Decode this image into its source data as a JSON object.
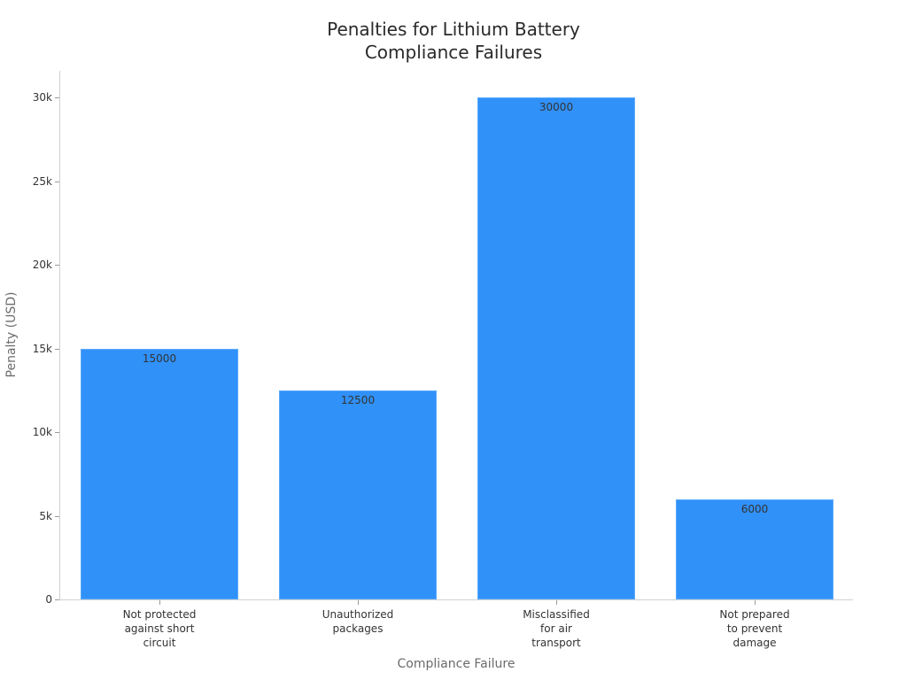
{
  "chart_data": {
    "type": "bar",
    "title": "Penalties for Lithium Battery\nCompliance Failures",
    "title_lines": [
      "Penalties for Lithium Battery",
      "Compliance Failures"
    ],
    "xlabel": "Compliance Failure",
    "ylabel": "Penalty (USD)",
    "categories": [
      "Not protected against short circuit",
      "Unauthorized packages",
      "Misclassified for air transport",
      "Not prepared to prevent damage"
    ],
    "category_labels_wrapped": [
      "Not protected\nagainst short\ncircuit",
      "Unauthorized\npackages",
      "Misclassified\nfor air\ntransport",
      "Not prepared\nto prevent\ndamage"
    ],
    "values": [
      15000,
      12500,
      30000,
      6000
    ],
    "data_labels": [
      "15000",
      "12500",
      "30000",
      "6000"
    ],
    "yticks": [
      0,
      5000,
      10000,
      15000,
      20000,
      25000,
      30000
    ],
    "ytick_labels": [
      "0",
      "5k",
      "10k",
      "15k",
      "20k",
      "25k",
      "30k"
    ],
    "ylim": [
      0,
      31600
    ],
    "grid": false,
    "legend": null,
    "bar_color": "#3091f9"
  }
}
